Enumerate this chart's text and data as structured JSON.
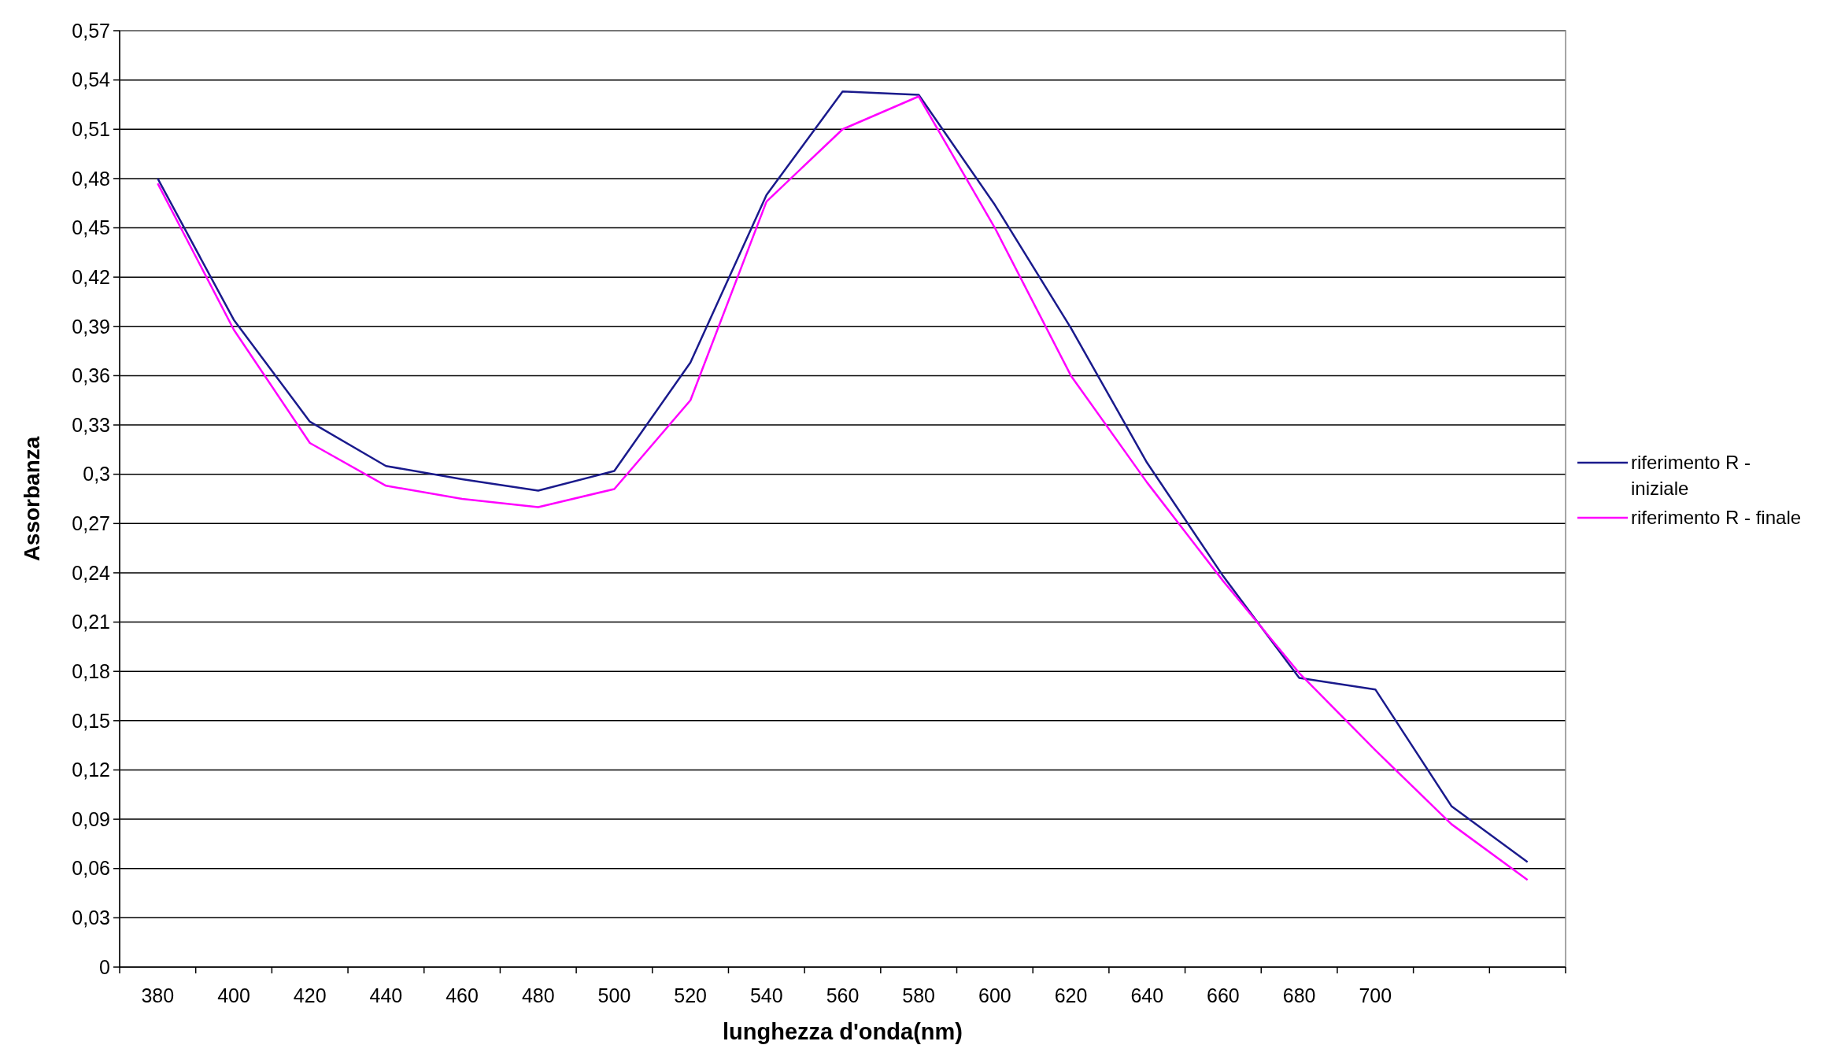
{
  "chart_data": {
    "type": "line",
    "xlabel": "lunghezza d'onda(nm)",
    "ylabel": "Assorbanza",
    "categories": [
      "380",
      "400",
      "420",
      "440",
      "460",
      "480",
      "500",
      "520",
      "540",
      "560",
      "580",
      "600",
      "620",
      "640",
      "660",
      "680",
      "700",
      null,
      null
    ],
    "series": [
      {
        "name": "riferimento R - iniziale",
        "color": "#1a1a8c",
        "values": [
          0.48,
          0.394,
          0.332,
          0.305,
          0.297,
          0.29,
          0.302,
          0.368,
          0.47,
          0.533,
          0.531,
          0.464,
          0.389,
          0.307,
          0.238,
          0.176,
          0.169,
          0.098,
          0.064
        ]
      },
      {
        "name": "riferimento R - finale",
        "color": "#ff00ff",
        "values": [
          0.477,
          0.388,
          0.319,
          0.293,
          0.285,
          0.28,
          0.291,
          0.345,
          0.466,
          0.51,
          0.53,
          0.45,
          0.36,
          0.295,
          0.235,
          0.179,
          0.132,
          0.087,
          0.053
        ]
      }
    ],
    "ylim": [
      0,
      0.57
    ],
    "yticks": [
      0,
      {
        "value": 0.03,
        "label": "0,03"
      },
      {
        "value": 0.06,
        "label": "0,06"
      },
      {
        "value": 0.09,
        "label": "0,09"
      },
      {
        "value": 0.12,
        "label": "0,12"
      },
      {
        "value": 0.15,
        "label": "0,15"
      },
      {
        "value": 0.18,
        "label": "0,18"
      },
      {
        "value": 0.21,
        "label": "0,21"
      },
      {
        "value": 0.24,
        "label": "0,24"
      },
      {
        "value": 0.27,
        "label": "0,27"
      },
      {
        "value": 0.3,
        "label": "0,3"
      },
      {
        "value": 0.33,
        "label": "0,33"
      },
      {
        "value": 0.36,
        "label": "0,36"
      },
      {
        "value": 0.39,
        "label": "0,39"
      },
      {
        "value": 0.42,
        "label": "0,42"
      },
      {
        "value": 0.45,
        "label": "0,45"
      },
      {
        "value": 0.48,
        "label": "0,48"
      },
      {
        "value": 0.51,
        "label": "0,51"
      },
      {
        "value": 0.54,
        "label": "0,54"
      },
      {
        "value": 0.57,
        "label": "0,57"
      }
    ],
    "grid": "y",
    "legend": "right",
    "marker": "none",
    "line_style": "solid"
  }
}
